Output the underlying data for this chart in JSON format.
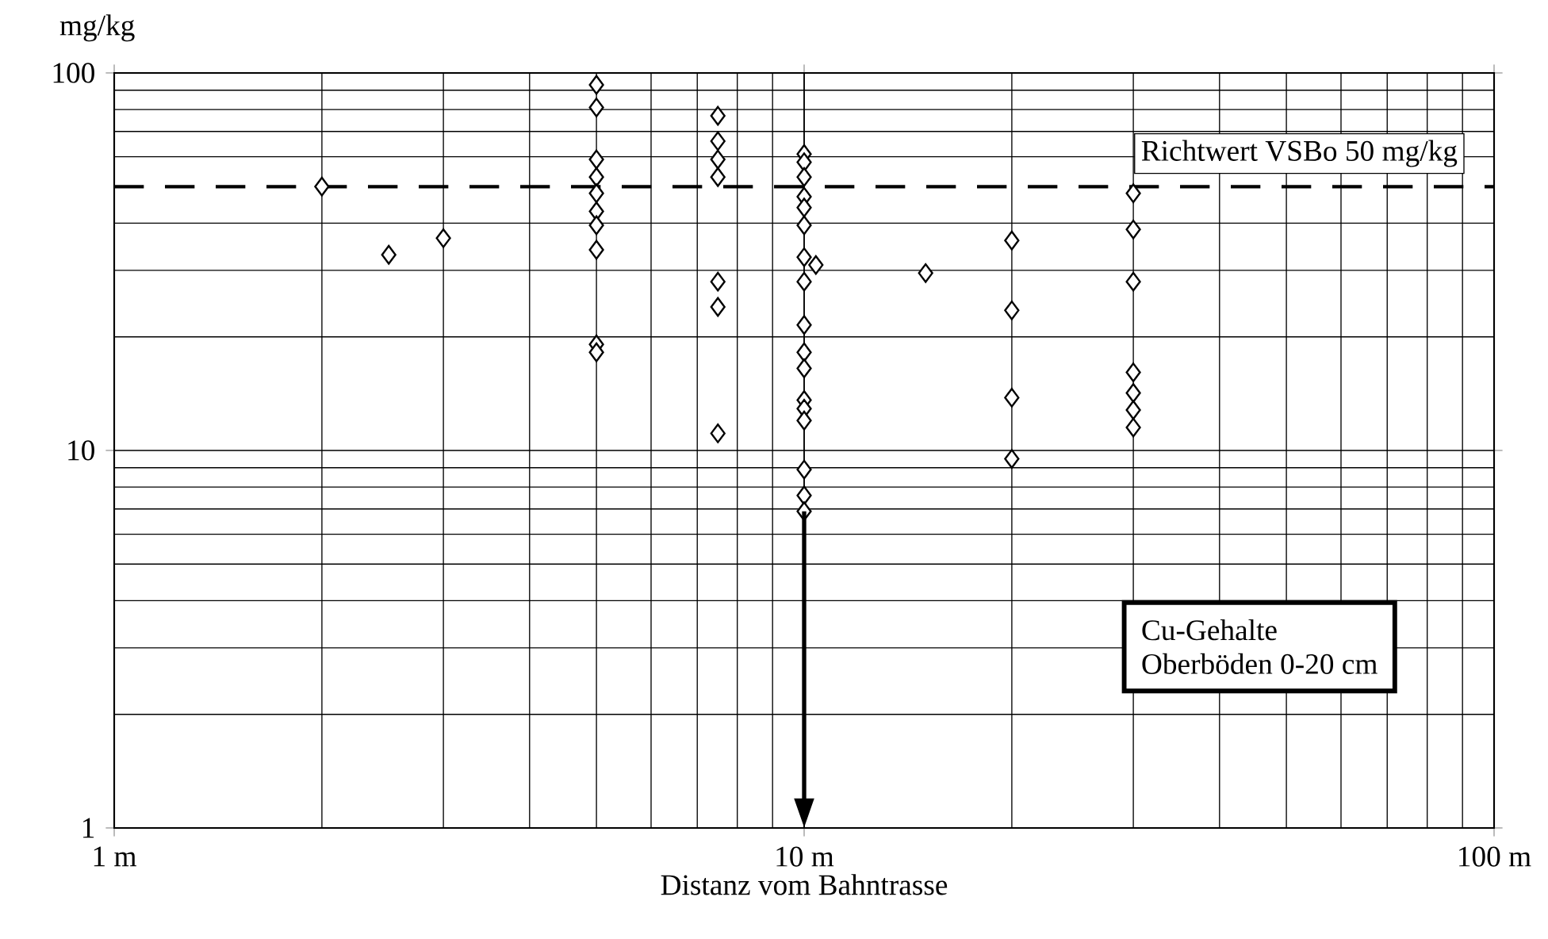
{
  "chart_data": {
    "type": "scatter",
    "xlabel": "Distanz vom Bahntrasse",
    "ylabel": "mg/kg",
    "x": [
      2,
      2.5,
      3,
      5,
      5,
      5,
      5,
      5,
      5,
      5,
      5,
      5,
      5,
      7.5,
      7.5,
      7.5,
      7.5,
      7.5,
      7.5,
      7.5,
      10,
      10,
      10,
      10,
      10,
      10,
      10,
      10,
      10,
      10,
      10,
      10,
      10,
      10,
      10,
      10,
      10,
      10.4,
      15,
      20,
      20,
      20,
      20,
      30,
      30,
      30,
      30,
      30,
      30,
      30
    ],
    "series": [
      {
        "color": "#000000",
        "values": [
          50,
          33,
          36.5,
          93,
          81,
          59,
          53,
          48,
          43,
          39.5,
          34,
          19.1,
          18.2,
          77,
          66,
          59,
          53,
          28,
          24,
          11.1,
          61,
          58,
          53,
          47,
          44,
          39.5,
          32.5,
          28,
          21.5,
          18.2,
          16.5,
          13.6,
          12.9,
          12.0,
          8.9,
          7.6,
          6.9,
          31,
          29.5,
          36,
          23.5,
          13.8,
          9.5,
          48,
          38.5,
          28,
          16.1,
          14.2,
          12.8,
          11.5
        ]
      }
    ],
    "marker": "diamond",
    "log": "xy",
    "grid": true,
    "xlim": [
      1,
      100
    ],
    "ylim": [
      1,
      100
    ],
    "xticks": [
      {
        "value": 1,
        "label": "1 m"
      },
      {
        "value": 10,
        "label": "10 m"
      },
      {
        "value": 100,
        "label": "100 m"
      }
    ],
    "yticks": [
      1,
      10,
      100
    ],
    "ref_lines": [
      {
        "axis": "y",
        "value": 50,
        "label": "Richtwert VSBo 50 mg/kg",
        "color": "#000000",
        "line_style": "dashed"
      }
    ],
    "annotations": [
      "Cu-Gehalte",
      "Oberböden 0-20 cm"
    ]
  }
}
